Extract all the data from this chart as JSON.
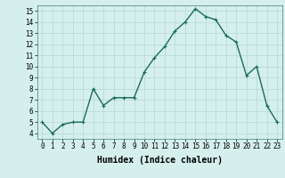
{
  "x": [
    0,
    1,
    2,
    3,
    4,
    5,
    6,
    7,
    8,
    9,
    10,
    11,
    12,
    13,
    14,
    15,
    16,
    17,
    18,
    19,
    20,
    21,
    22,
    23
  ],
  "y": [
    5.0,
    4.0,
    4.8,
    5.0,
    5.0,
    8.0,
    6.5,
    7.2,
    7.2,
    7.2,
    9.5,
    10.8,
    11.8,
    13.2,
    14.0,
    15.2,
    14.5,
    14.2,
    12.8,
    12.2,
    9.2,
    10.0,
    6.5,
    5.0
  ],
  "line_color": "#1a6b5a",
  "marker": "+",
  "marker_size": 3,
  "xlim": [
    -0.5,
    23.5
  ],
  "ylim": [
    3.5,
    15.5
  ],
  "yticks": [
    4,
    5,
    6,
    7,
    8,
    9,
    10,
    11,
    12,
    13,
    14,
    15
  ],
  "xticks": [
    0,
    1,
    2,
    3,
    4,
    5,
    6,
    7,
    8,
    9,
    10,
    11,
    12,
    13,
    14,
    15,
    16,
    17,
    18,
    19,
    20,
    21,
    22,
    23
  ],
  "xlabel": "Humidex (Indice chaleur)",
  "background_color": "#d5efec",
  "grid_color": "#b8ddd8",
  "linewidth": 1.0,
  "tick_fontsize": 5.5,
  "xlabel_fontsize": 7.0
}
